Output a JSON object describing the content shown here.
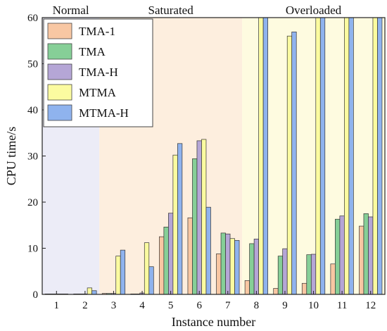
{
  "chart_data": {
    "type": "bar",
    "xlabel": "Instance number",
    "ylabel": "CPU time/s",
    "ylim": [
      0,
      60
    ],
    "yticks": [
      0,
      10,
      20,
      30,
      40,
      50,
      60
    ],
    "categories": [
      "1",
      "2",
      "3",
      "4",
      "5",
      "6",
      "7",
      "8",
      "9",
      "10",
      "11",
      "12"
    ],
    "series": [
      {
        "name": "TMA-1",
        "color": "#f8c7a3",
        "values": [
          0.1,
          0.1,
          0.2,
          0.1,
          12.5,
          16.6,
          8.8,
          3.0,
          1.3,
          2.4,
          6.6,
          14.8
        ]
      },
      {
        "name": "TMA",
        "color": "#86cf97",
        "values": [
          0.1,
          0.1,
          0.2,
          0.1,
          14.6,
          29.4,
          13.3,
          11.0,
          8.3,
          8.6,
          16.3,
          17.5
        ]
      },
      {
        "name": "TMA-H",
        "color": "#b5a6d6",
        "values": [
          0.1,
          0.1,
          0.2,
          0.3,
          17.6,
          33.3,
          13.1,
          12.0,
          9.9,
          8.7,
          17.0,
          16.8
        ]
      },
      {
        "name": "MTMA",
        "color": "#fbfba0",
        "values": [
          0.1,
          1.4,
          8.3,
          11.2,
          30.2,
          33.6,
          12.1,
          60,
          56.0,
          60,
          60,
          60
        ]
      },
      {
        "name": "MTMA-H",
        "color": "#8fb3ee",
        "values": [
          0.1,
          0.8,
          9.6,
          6.0,
          32.7,
          18.9,
          11.7,
          60,
          56.9,
          60,
          60,
          60
        ]
      }
    ],
    "regions": [
      {
        "label": "Normal",
        "from": 1,
        "to": 2,
        "color": "#ececf7"
      },
      {
        "label": "Saturated",
        "from": 3,
        "to": 7,
        "color": "#fdeede"
      },
      {
        "label": "Overloaded",
        "from": 8,
        "to": 12,
        "color": "#fefbe0"
      }
    ],
    "legend_position": "top-left",
    "grid": false
  }
}
